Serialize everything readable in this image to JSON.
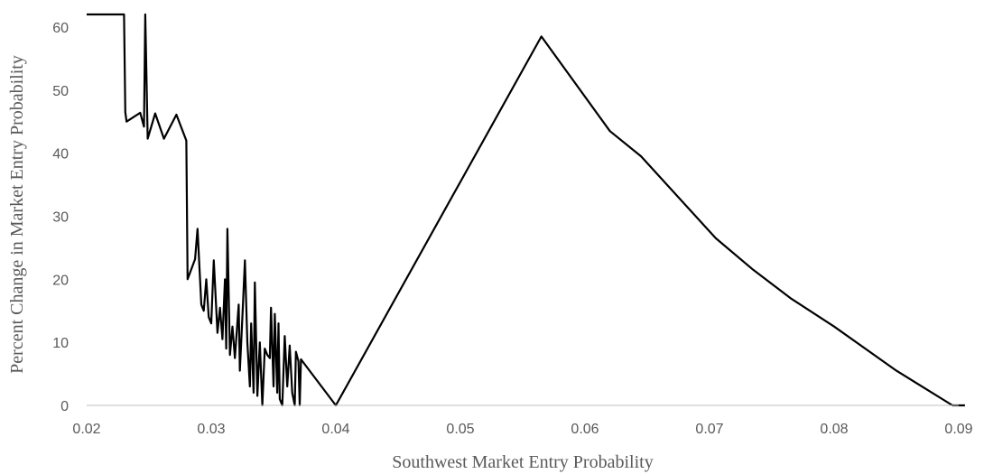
{
  "chart_data": {
    "type": "line",
    "title": "",
    "xlabel": "Southwest Market Entry Probability",
    "ylabel": "Percent Change in Market Entry Probability",
    "xlim": [
      0.02,
      0.09
    ],
    "ylim": [
      0,
      62
    ],
    "x_ticks": [
      0.02,
      0.03,
      0.04,
      0.05,
      0.06,
      0.07,
      0.08,
      0.09
    ],
    "x_tick_labels": [
      "0.02",
      "0.03",
      "0.04",
      "0.05",
      "0.06",
      "0.07",
      "0.08",
      "0.09"
    ],
    "y_ticks": [
      0,
      10,
      20,
      30,
      40,
      50,
      60
    ],
    "y_tick_labels": [
      "0",
      "10",
      "20",
      "30",
      "40",
      "50",
      "60"
    ],
    "grid": false,
    "legend": "none",
    "series": [
      {
        "color": "#000000",
        "points": [
          [
            0.02,
            62
          ],
          [
            0.023,
            62
          ],
          [
            0.0231,
            46.5
          ],
          [
            0.0232,
            45
          ],
          [
            0.0243,
            46.4
          ],
          [
            0.0246,
            44.2
          ],
          [
            0.0247,
            62
          ],
          [
            0.0249,
            42.3
          ],
          [
            0.0255,
            46.3
          ],
          [
            0.0262,
            42.3
          ],
          [
            0.0272,
            46.1
          ],
          [
            0.028,
            42
          ],
          [
            0.0281,
            20
          ],
          [
            0.0287,
            23.2
          ],
          [
            0.0289,
            28
          ],
          [
            0.0292,
            16
          ],
          [
            0.0294,
            15
          ],
          [
            0.0296,
            20
          ],
          [
            0.0298,
            14
          ],
          [
            0.03,
            13
          ],
          [
            0.0302,
            23
          ],
          [
            0.0305,
            11.5
          ],
          [
            0.0307,
            15.5
          ],
          [
            0.0309,
            10.5
          ],
          [
            0.0311,
            20
          ],
          [
            0.0312,
            9
          ],
          [
            0.0313,
            28
          ],
          [
            0.0315,
            8
          ],
          [
            0.0317,
            12.5
          ],
          [
            0.0319,
            7.5
          ],
          [
            0.0322,
            16
          ],
          [
            0.0323,
            5.5
          ],
          [
            0.0325,
            14
          ],
          [
            0.0327,
            23
          ],
          [
            0.0329,
            10
          ],
          [
            0.0331,
            3
          ],
          [
            0.0332,
            13
          ],
          [
            0.0334,
            2
          ],
          [
            0.0335,
            19.5
          ],
          [
            0.0337,
            1.5
          ],
          [
            0.0339,
            10
          ],
          [
            0.0341,
            0
          ],
          [
            0.0343,
            9
          ],
          [
            0.0345,
            8
          ],
          [
            0.0347,
            7.5
          ],
          [
            0.0348,
            15.5
          ],
          [
            0.035,
            3
          ],
          [
            0.0351,
            14.5
          ],
          [
            0.0353,
            2
          ],
          [
            0.0354,
            13
          ],
          [
            0.0355,
            1
          ],
          [
            0.0357,
            0
          ],
          [
            0.0359,
            11
          ],
          [
            0.0361,
            3
          ],
          [
            0.0363,
            9.5
          ],
          [
            0.0365,
            2
          ],
          [
            0.0367,
            0
          ],
          [
            0.0368,
            8.5
          ],
          [
            0.037,
            7
          ],
          [
            0.0371,
            0
          ],
          [
            0.0372,
            7.3
          ],
          [
            0.04,
            0
          ],
          [
            0.0565,
            58.5
          ],
          [
            0.062,
            43.5
          ],
          [
            0.0645,
            39.5
          ],
          [
            0.0705,
            26.5
          ],
          [
            0.0735,
            21.5
          ],
          [
            0.0765,
            17
          ],
          [
            0.08,
            12.5
          ],
          [
            0.085,
            5.5
          ],
          [
            0.0895,
            0
          ],
          [
            0.0905,
            0
          ]
        ]
      }
    ]
  }
}
